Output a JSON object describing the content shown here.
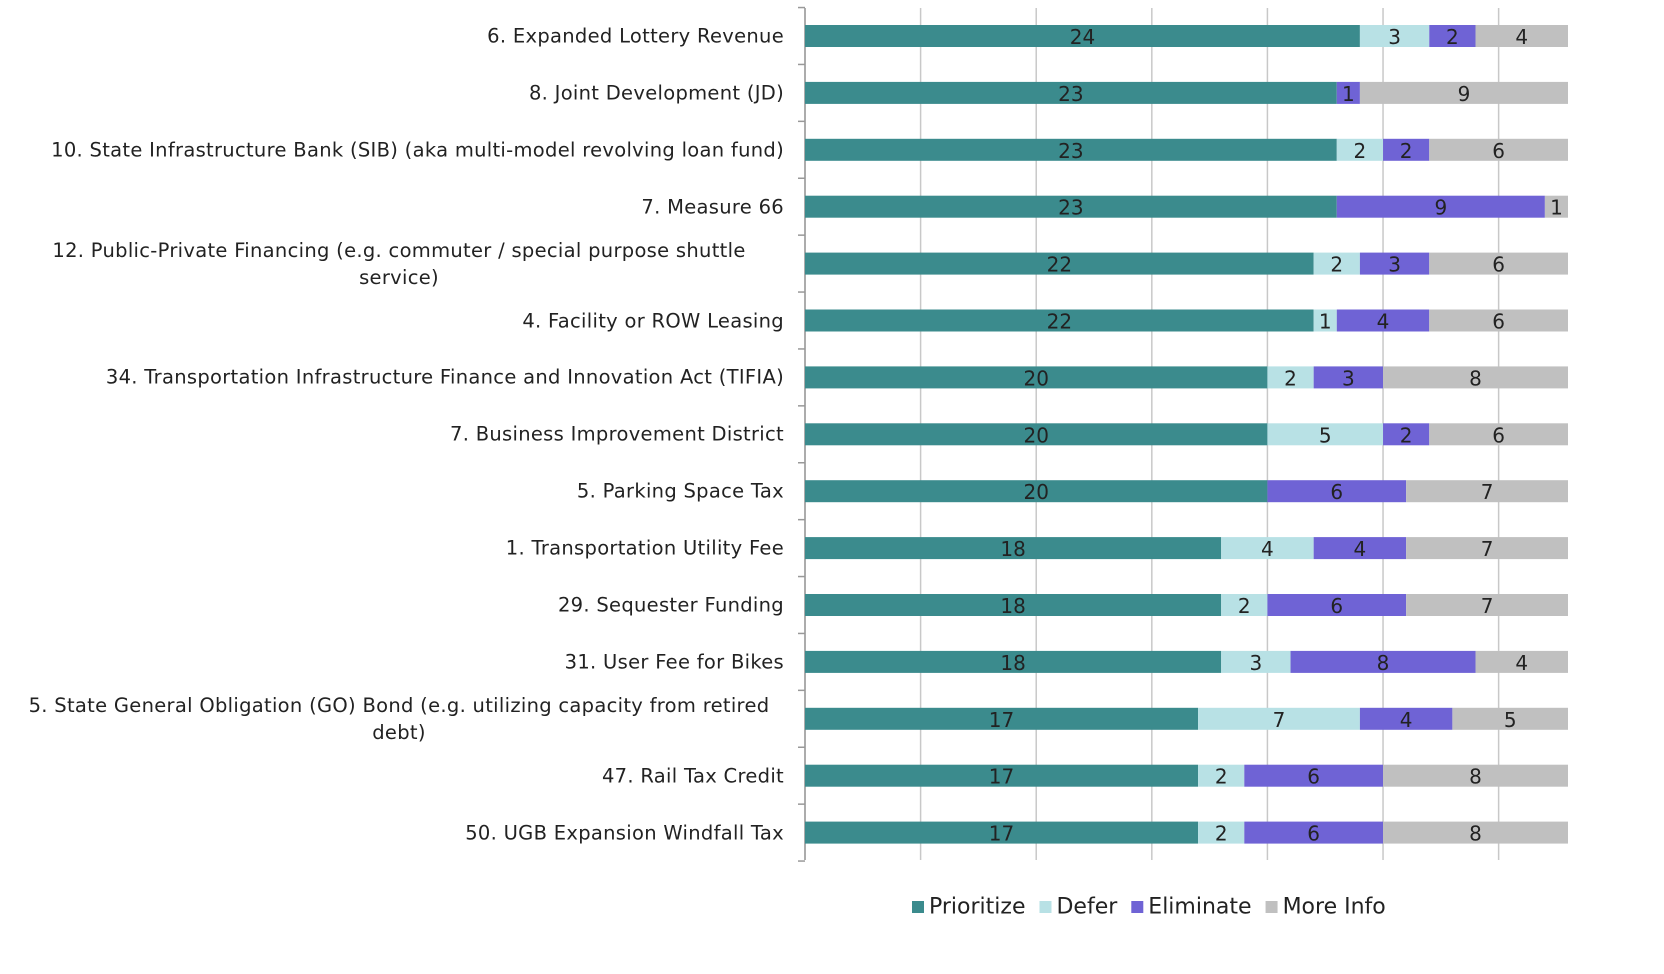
{
  "chart_data": {
    "type": "stacked-bar-horizontal",
    "categories": [
      "6. Expanded Lottery Revenue",
      "8. Joint Development (JD)",
      "10. State Infrastructure Bank (SIB) (aka multi-model revolving loan fund)",
      "7. Measure 66",
      "12. Public-Private Financing (e.g. commuter / special purpose shuttle service)",
      "4. Facility or ROW Leasing",
      "34. Transportation Infrastructure Finance and Innovation Act (TIFIA)",
      "7. Business Improvement District",
      "5. Parking Space Tax",
      "1. Transportation Utility Fee",
      "29. Sequester Funding",
      "31. User Fee for Bikes",
      "5. State General Obligation (GO) Bond (e.g. utilizing capacity from retired debt)",
      "47. Rail Tax Credit",
      "50. UGB Expansion Windfall Tax"
    ],
    "series": [
      {
        "name": "Prioritize",
        "color": "#3b8b8d",
        "values": [
          24,
          23,
          23,
          23,
          22,
          22,
          20,
          20,
          20,
          18,
          18,
          18,
          17,
          17,
          17
        ]
      },
      {
        "name": "Defer",
        "color": "#b8e1e5",
        "values": [
          3,
          null,
          2,
          null,
          2,
          1,
          2,
          5,
          null,
          4,
          2,
          3,
          7,
          2,
          2
        ]
      },
      {
        "name": "Eliminate",
        "color": "#6f63d5",
        "values": [
          2,
          1,
          2,
          9,
          3,
          4,
          3,
          2,
          6,
          4,
          6,
          8,
          4,
          6,
          6
        ]
      },
      {
        "name": "More Info",
        "color": "#c0c0c0",
        "values": [
          4,
          9,
          6,
          1,
          6,
          6,
          8,
          6,
          7,
          7,
          7,
          4,
          5,
          8,
          8
        ]
      }
    ],
    "xlim": [
      0,
      33
    ],
    "xticks": [
      0,
      5,
      10,
      15,
      20,
      25,
      30
    ],
    "grid": true,
    "legend": "bottom"
  }
}
